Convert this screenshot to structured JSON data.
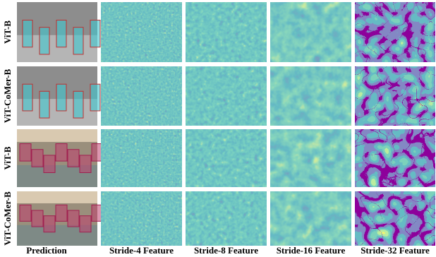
{
  "row_labels": [
    "ViT-B",
    "ViT-CoMer-B",
    "ViT-B",
    "ViT-CoMer-B"
  ],
  "column_labels": [
    "Prediction",
    "Stride-4 Feature",
    "Stride-8 Feature",
    "Stride-16 Feature",
    "Stride-32 Feature"
  ]
}
